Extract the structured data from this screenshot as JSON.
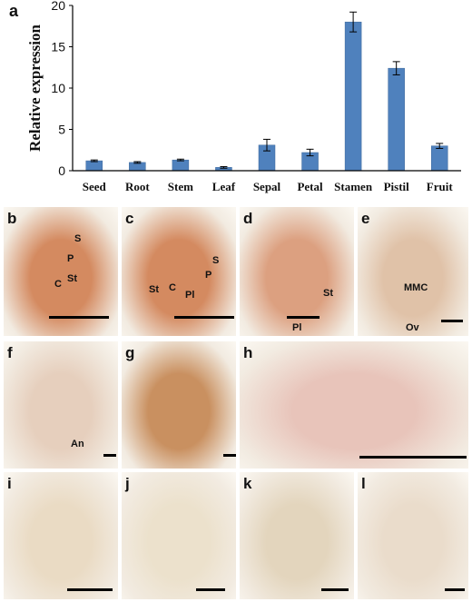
{
  "figure_label": "a",
  "chart_data": {
    "type": "bar",
    "title": "",
    "ylabel": "Relative expression",
    "xlabel": "",
    "ylim": [
      0,
      20
    ],
    "yticks": [
      0,
      5,
      10,
      15,
      20
    ],
    "grid": false,
    "bar_color": "#4f81bd",
    "categories": [
      "Seed",
      "Root",
      "Stem",
      "Leaf",
      "Sepal",
      "Petal",
      "Stamen",
      "Pistil",
      "Fruit"
    ],
    "values": [
      1.2,
      1.0,
      1.3,
      0.4,
      3.1,
      2.2,
      18.0,
      12.4,
      3.0
    ],
    "errors": [
      0.1,
      0.1,
      0.1,
      0.1,
      0.7,
      0.4,
      1.2,
      0.8,
      0.3
    ]
  },
  "panels": [
    {
      "label": "b",
      "tone": "#d48a60",
      "marks": [
        "S",
        "P",
        "C",
        "St"
      ],
      "has_scale_bar": true
    },
    {
      "label": "c",
      "tone": "#d48a60",
      "marks": [
        "S",
        "P",
        "St",
        "C",
        "Pl"
      ],
      "has_scale_bar": true
    },
    {
      "label": "d",
      "tone": "#dca080",
      "marks": [
        "St",
        "Pl"
      ],
      "has_scale_bar": true
    },
    {
      "label": "e",
      "tone": "#e0c2a8",
      "marks": [
        "MMC",
        "Ov"
      ],
      "has_scale_bar": true
    },
    {
      "label": "f",
      "tone": "#e6cfbd",
      "marks": [
        "An"
      ],
      "has_scale_bar": true
    },
    {
      "label": "g",
      "tone": "#c99060",
      "marks": [],
      "has_scale_bar": true
    },
    {
      "label": "h",
      "tone": "#e8c4ba",
      "marks": [],
      "has_scale_bar": true
    },
    {
      "label": "i",
      "tone": "#eadbc4",
      "marks": [],
      "has_scale_bar": true
    },
    {
      "label": "j",
      "tone": "#ece1cc",
      "marks": [],
      "has_scale_bar": true
    },
    {
      "label": "k",
      "tone": "#e3d5bd",
      "marks": [],
      "has_scale_bar": true
    },
    {
      "label": "l",
      "tone": "#eadccb",
      "marks": [],
      "has_scale_bar": true
    }
  ]
}
